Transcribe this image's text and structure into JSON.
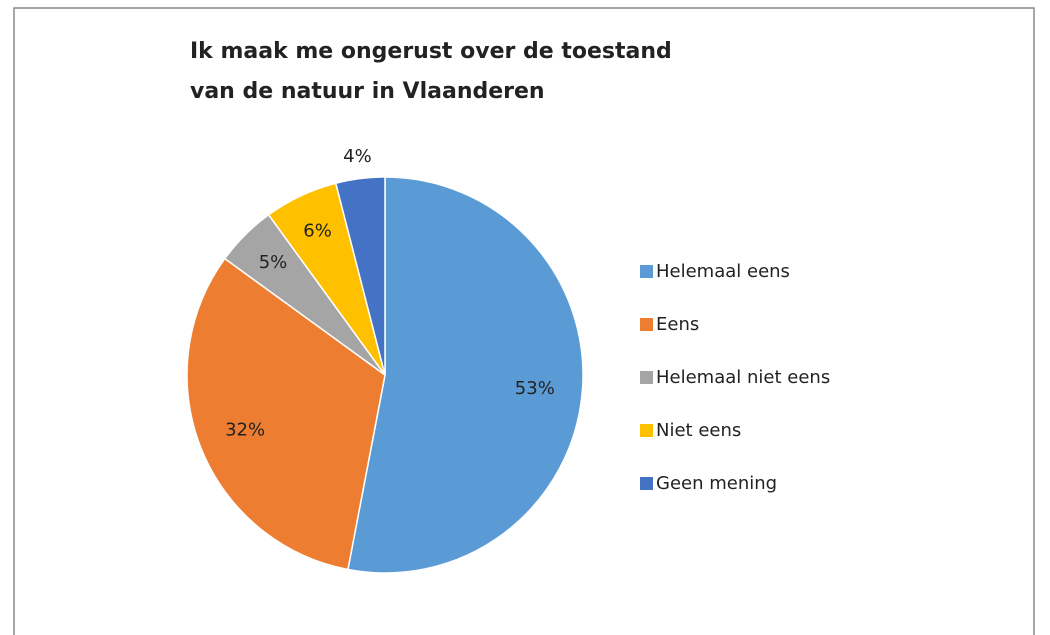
{
  "chart_data": {
    "type": "pie",
    "title": [
      "Ik maak me ongerust over de toestand",
      "van de natuur in Vlaanderen"
    ],
    "categories": [
      "Helemaal eens",
      "Eens",
      "Helemaal niet eens",
      "Niet eens",
      "Geen mening"
    ],
    "values": [
      53,
      32,
      5,
      6,
      4
    ],
    "value_labels": [
      "53%",
      "32%",
      "5%",
      "6%",
      "4%"
    ],
    "colors": [
      "#5b9bd5",
      "#ed7d31",
      "#a5a5a5",
      "#ffc000",
      "#4472c4"
    ],
    "legend": "right"
  }
}
